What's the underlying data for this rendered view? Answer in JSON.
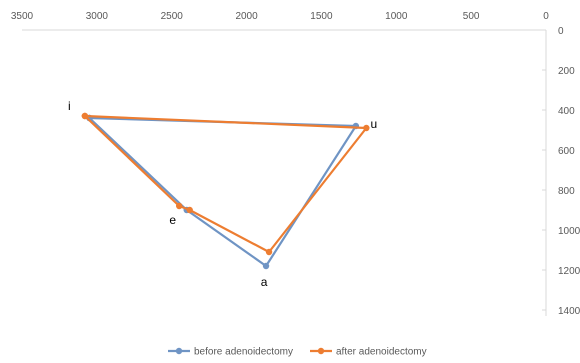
{
  "chart_data": {
    "type": "scatter",
    "title": "",
    "xlabel": "",
    "ylabel": "",
    "x_reversed": true,
    "y_reversed": true,
    "x_axis_position": "top",
    "y_axis_position": "right",
    "xlim": [
      0,
      3500
    ],
    "ylim": [
      0,
      1400
    ],
    "x_ticks": [
      "3500",
      "3000",
      "2500",
      "2000",
      "1500",
      "1000",
      "500",
      "0"
    ],
    "y_ticks": [
      "0",
      "200",
      "400",
      "600",
      "800",
      "1000",
      "1200",
      "1400"
    ],
    "grid": false,
    "legend_position": "bottom",
    "series": [
      {
        "name": "before adenoidectomy",
        "color": "#6f94c4",
        "points": [
          {
            "label": "i",
            "x": 3050,
            "y": 440
          },
          {
            "label": "u",
            "x": 1270,
            "y": 480
          },
          {
            "label": "a",
            "x": 1870,
            "y": 1180
          },
          {
            "label": "e",
            "x": 2400,
            "y": 900
          },
          {
            "label": "i",
            "x": 3050,
            "y": 440
          }
        ]
      },
      {
        "name": "after adenoidectomy",
        "color": "#ed7d31",
        "points": [
          {
            "label": "i",
            "x": 3080,
            "y": 430
          },
          {
            "label": "u",
            "x": 1200,
            "y": 490
          },
          {
            "label": "a",
            "x": 1850,
            "y": 1110
          },
          {
            "label": "e",
            "x": 2380,
            "y": 900
          },
          {
            "label": "e",
            "x": 2450,
            "y": 880
          },
          {
            "label": "i",
            "x": 3080,
            "y": 430
          }
        ]
      }
    ],
    "point_labels": [
      "i",
      "u",
      "e",
      "a"
    ]
  }
}
